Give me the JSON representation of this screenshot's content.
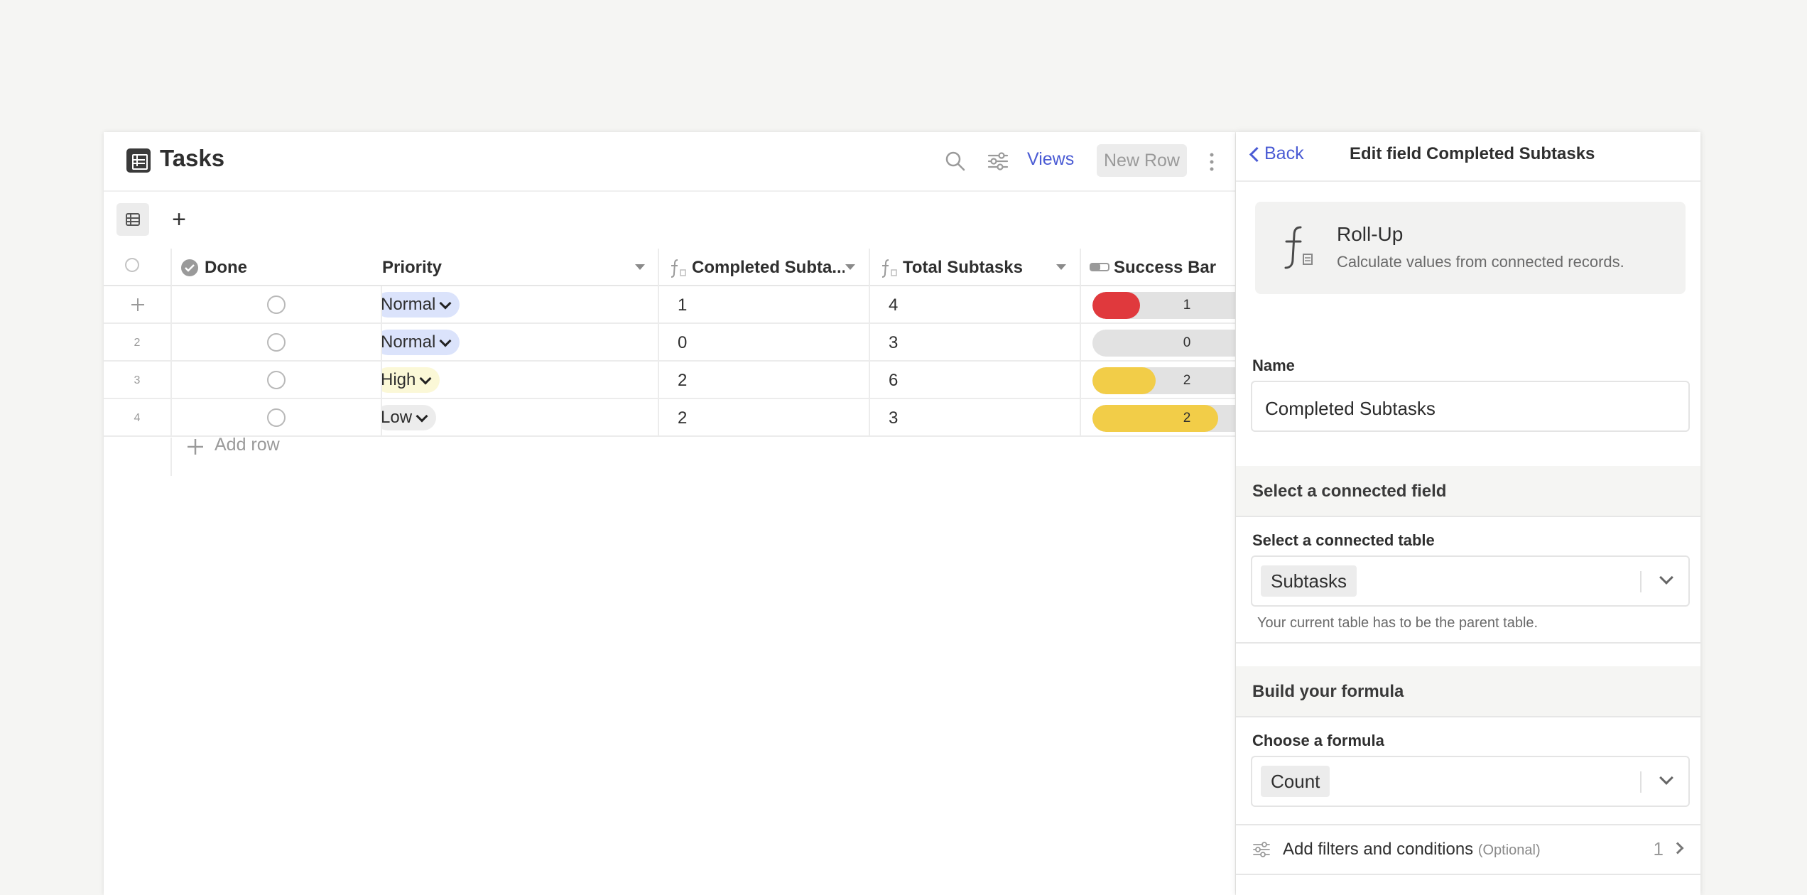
{
  "table": {
    "title": "Tasks",
    "toolbar": {
      "views_label": "Views",
      "new_row_label": "New Row"
    },
    "columns": {
      "done": "Done",
      "priority": "Priority",
      "completed": "Completed Subta...",
      "total": "Total Subtasks",
      "success": "Success Bar"
    },
    "rows": [
      {
        "num": "",
        "priority": "Normal",
        "priority_color": "#dbe3fb",
        "completed": "1",
        "total": "4",
        "success_label": "1",
        "success_fraction": 0.25,
        "success_color": "#e0393d"
      },
      {
        "num": "2",
        "priority": "Normal",
        "priority_color": "#dbe3fb",
        "completed": "0",
        "total": "3",
        "success_label": "0",
        "success_fraction": 0.0,
        "success_color": "#e0393d"
      },
      {
        "num": "3",
        "priority": "High",
        "priority_color": "#fbf8d7",
        "completed": "2",
        "total": "6",
        "success_label": "2",
        "success_fraction": 0.333,
        "success_color": "#f2cd48"
      },
      {
        "num": "4",
        "priority": "Low",
        "priority_color": "#ececec",
        "completed": "2",
        "total": "3",
        "success_label": "2",
        "success_fraction": 0.667,
        "success_color": "#f2cd48"
      }
    ],
    "add_row_label": "Add row"
  },
  "panel": {
    "back_label": "Back",
    "title": "Edit field Completed Subtasks",
    "type_name": "Roll-Up",
    "type_desc": "Calculate values from connected records.",
    "name_label": "Name",
    "name_value": "Completed Subtasks",
    "section_connected": "Select a connected field",
    "connected_table_label": "Select a connected table",
    "connected_table_value": "Subtasks",
    "connected_hint": "Your current table has to be the parent table.",
    "section_formula": "Build your formula",
    "formula_label": "Choose a formula",
    "formula_value": "Count",
    "filters_label": "Add filters and conditions",
    "filters_optional": "(Optional)",
    "filters_count": "1"
  },
  "colors": {
    "accent": "#4a5bd4",
    "red": "#e0393d",
    "yellow": "#f2cd48"
  }
}
